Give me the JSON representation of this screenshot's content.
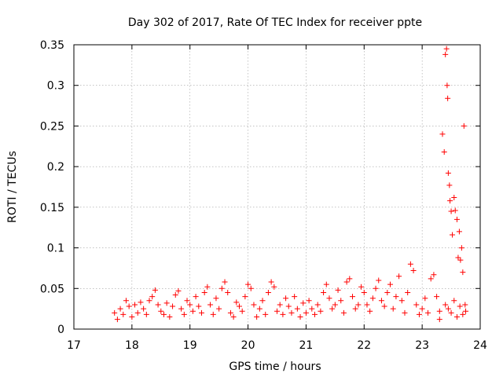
{
  "chart_data": {
    "type": "scatter",
    "title": "Day 302 of 2017, Rate Of TEC Index for receiver ppte",
    "xlabel": "GPS time / hours",
    "ylabel": "ROTI / TECUs",
    "xlim": [
      17,
      24
    ],
    "ylim": [
      0,
      0.35
    ],
    "x_ticks": [
      17,
      18,
      19,
      20,
      21,
      22,
      23,
      24
    ],
    "x_tick_labels": [
      "17",
      "18",
      "19",
      "20",
      "21",
      "22",
      "23",
      "24"
    ],
    "y_ticks": [
      0,
      0.05,
      0.1,
      0.15,
      0.2,
      0.25,
      0.3,
      0.35
    ],
    "y_tick_labels": [
      "0",
      "0.05",
      "0.1",
      "0.15",
      "0.2",
      "0.25",
      "0.3",
      "0.35"
    ],
    "grid": true,
    "marker": "+",
    "color": "#ff0000",
    "series": [
      {
        "name": "ROTI",
        "points": [
          [
            17.7,
            0.02
          ],
          [
            17.75,
            0.012
          ],
          [
            17.8,
            0.025
          ],
          [
            17.85,
            0.018
          ],
          [
            17.9,
            0.035
          ],
          [
            17.95,
            0.028
          ],
          [
            18.0,
            0.015
          ],
          [
            18.05,
            0.03
          ],
          [
            18.1,
            0.02
          ],
          [
            18.15,
            0.033
          ],
          [
            18.2,
            0.025
          ],
          [
            18.25,
            0.018
          ],
          [
            18.3,
            0.035
          ],
          [
            18.35,
            0.04
          ],
          [
            18.4,
            0.048
          ],
          [
            18.45,
            0.03
          ],
          [
            18.5,
            0.022
          ],
          [
            18.55,
            0.018
          ],
          [
            18.6,
            0.032
          ],
          [
            18.65,
            0.015
          ],
          [
            18.7,
            0.028
          ],
          [
            18.75,
            0.042
          ],
          [
            18.8,
            0.047
          ],
          [
            18.85,
            0.025
          ],
          [
            18.9,
            0.018
          ],
          [
            18.95,
            0.035
          ],
          [
            19.0,
            0.03
          ],
          [
            19.05,
            0.022
          ],
          [
            19.1,
            0.04
          ],
          [
            19.15,
            0.028
          ],
          [
            19.2,
            0.02
          ],
          [
            19.25,
            0.045
          ],
          [
            19.3,
            0.052
          ],
          [
            19.35,
            0.03
          ],
          [
            19.4,
            0.018
          ],
          [
            19.45,
            0.038
          ],
          [
            19.5,
            0.025
          ],
          [
            19.55,
            0.05
          ],
          [
            19.6,
            0.058
          ],
          [
            19.65,
            0.045
          ],
          [
            19.7,
            0.02
          ],
          [
            19.75,
            0.015
          ],
          [
            19.8,
            0.033
          ],
          [
            19.85,
            0.028
          ],
          [
            19.9,
            0.022
          ],
          [
            19.95,
            0.04
          ],
          [
            20.0,
            0.055
          ],
          [
            20.05,
            0.05
          ],
          [
            20.1,
            0.03
          ],
          [
            20.15,
            0.015
          ],
          [
            20.2,
            0.025
          ],
          [
            20.25,
            0.035
          ],
          [
            20.3,
            0.018
          ],
          [
            20.35,
            0.045
          ],
          [
            20.4,
            0.058
          ],
          [
            20.45,
            0.052
          ],
          [
            20.5,
            0.022
          ],
          [
            20.55,
            0.03
          ],
          [
            20.6,
            0.018
          ],
          [
            20.65,
            0.038
          ],
          [
            20.7,
            0.028
          ],
          [
            20.75,
            0.02
          ],
          [
            20.8,
            0.04
          ],
          [
            20.85,
            0.025
          ],
          [
            20.9,
            0.015
          ],
          [
            20.95,
            0.032
          ],
          [
            21.0,
            0.02
          ],
          [
            21.05,
            0.035
          ],
          [
            21.1,
            0.025
          ],
          [
            21.15,
            0.018
          ],
          [
            21.2,
            0.03
          ],
          [
            21.25,
            0.022
          ],
          [
            21.3,
            0.045
          ],
          [
            21.35,
            0.055
          ],
          [
            21.4,
            0.038
          ],
          [
            21.45,
            0.025
          ],
          [
            21.5,
            0.03
          ],
          [
            21.55,
            0.048
          ],
          [
            21.6,
            0.035
          ],
          [
            21.65,
            0.02
          ],
          [
            21.7,
            0.058
          ],
          [
            21.75,
            0.062
          ],
          [
            21.8,
            0.04
          ],
          [
            21.85,
            0.025
          ],
          [
            21.9,
            0.03
          ],
          [
            21.95,
            0.052
          ],
          [
            22.0,
            0.045
          ],
          [
            22.05,
            0.03
          ],
          [
            22.1,
            0.022
          ],
          [
            22.15,
            0.038
          ],
          [
            22.2,
            0.05
          ],
          [
            22.25,
            0.06
          ],
          [
            22.3,
            0.035
          ],
          [
            22.35,
            0.028
          ],
          [
            22.4,
            0.045
          ],
          [
            22.45,
            0.055
          ],
          [
            22.5,
            0.025
          ],
          [
            22.55,
            0.04
          ],
          [
            22.6,
            0.065
          ],
          [
            22.65,
            0.035
          ],
          [
            22.7,
            0.02
          ],
          [
            22.75,
            0.045
          ],
          [
            22.8,
            0.08
          ],
          [
            22.85,
            0.072
          ],
          [
            22.9,
            0.03
          ],
          [
            22.95,
            0.018
          ],
          [
            23.0,
            0.025
          ],
          [
            23.05,
            0.038
          ],
          [
            23.1,
            0.02
          ],
          [
            23.15,
            0.062
          ],
          [
            23.2,
            0.067
          ],
          [
            23.25,
            0.04
          ],
          [
            23.3,
            0.022
          ],
          [
            23.35,
            0.24
          ],
          [
            23.38,
            0.218
          ],
          [
            23.4,
            0.338
          ],
          [
            23.42,
            0.345
          ],
          [
            23.43,
            0.3
          ],
          [
            23.44,
            0.284
          ],
          [
            23.45,
            0.192
          ],
          [
            23.47,
            0.177
          ],
          [
            23.48,
            0.158
          ],
          [
            23.5,
            0.145
          ],
          [
            23.52,
            0.116
          ],
          [
            23.55,
            0.162
          ],
          [
            23.57,
            0.146
          ],
          [
            23.6,
            0.135
          ],
          [
            23.62,
            0.088
          ],
          [
            23.64,
            0.12
          ],
          [
            23.66,
            0.085
          ],
          [
            23.68,
            0.1
          ],
          [
            23.7,
            0.07
          ],
          [
            23.72,
            0.25
          ],
          [
            23.74,
            0.03
          ],
          [
            23.5,
            0.02
          ],
          [
            23.6,
            0.015
          ],
          [
            23.45,
            0.025
          ],
          [
            23.55,
            0.035
          ],
          [
            23.65,
            0.028
          ],
          [
            23.7,
            0.018
          ],
          [
            23.75,
            0.022
          ],
          [
            23.4,
            0.03
          ],
          [
            23.3,
            0.012
          ]
        ]
      }
    ]
  }
}
